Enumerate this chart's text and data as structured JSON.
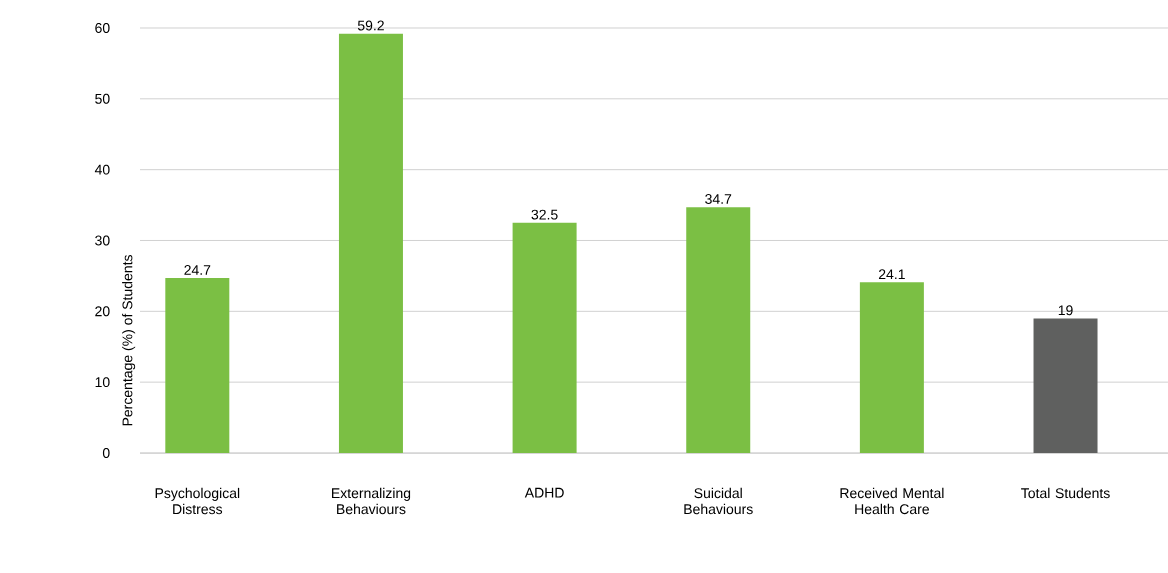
{
  "chart_data": {
    "type": "bar",
    "ylabel": "Percentage (%) of Students",
    "categories": [
      "Psychological Distress",
      "Externalizing Behaviours",
      "ADHD",
      "Suicidal Behaviours",
      "Received Mental Health Care",
      "Total Students"
    ],
    "values": [
      24.7,
      59.2,
      32.5,
      34.7,
      24.1,
      19
    ],
    "colors": [
      "#7bbf44",
      "#7bbf44",
      "#7bbf44",
      "#7bbf44",
      "#7bbf44",
      "#5f605f"
    ],
    "ylim": [
      0,
      60
    ],
    "yticks": [
      0,
      10,
      20,
      30,
      40,
      50,
      60
    ],
    "grid": "y",
    "data_labels": true
  }
}
